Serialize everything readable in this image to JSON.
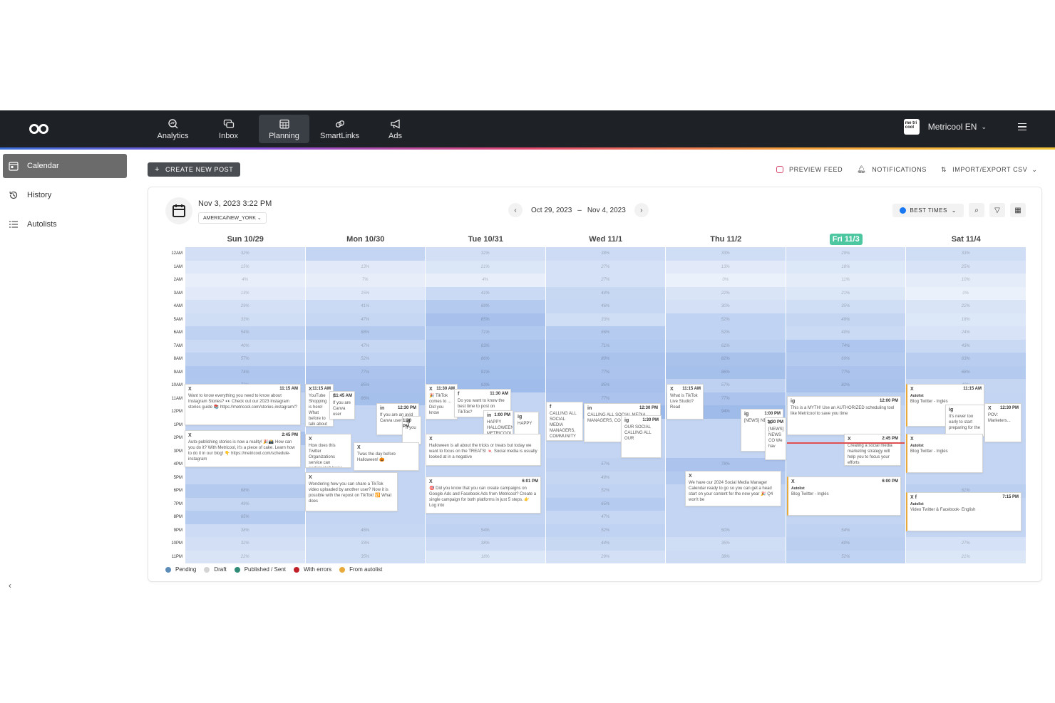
{
  "nav": {
    "items": [
      {
        "label": "Analytics",
        "icon": "analytics-icon"
      },
      {
        "label": "Inbox",
        "icon": "inbox-icon"
      },
      {
        "label": "Planning",
        "icon": "planning-icon",
        "active": true
      },
      {
        "label": "SmartLinks",
        "icon": "link-icon"
      },
      {
        "label": "Ads",
        "icon": "megaphone-icon"
      }
    ],
    "account_name": "Metricool EN",
    "badge_text": "me tri cool"
  },
  "sidebar": {
    "items": [
      {
        "label": "Calendar",
        "icon": "calendar-icon",
        "active": true
      },
      {
        "label": "History",
        "icon": "history-icon"
      },
      {
        "label": "Autolists",
        "icon": "list-icon"
      }
    ],
    "collapse_glyph": "‹"
  },
  "toolbar": {
    "create_label": "CREATE NEW POST",
    "preview_label": "PREVIEW FEED",
    "notifications_label": "NOTIFICATIONS",
    "import_label": "IMPORT/EXPORT CSV"
  },
  "calendar": {
    "current_datetime": "Nov 3, 2023 3:22 PM",
    "timezone": "AMERICA/NEW_YORK",
    "range_start": "Oct 29, 2023",
    "range_sep": "–",
    "range_end": "Nov 4, 2023",
    "best_times_label": "BEST TIMES",
    "days": [
      "Sun 10/29",
      "Mon 10/30",
      "Tue 10/31",
      "Wed 11/1",
      "Thu 11/2",
      "Fri 11/3",
      "Sat 11/4"
    ],
    "today_index": 5,
    "hours": [
      "12AM",
      "1AM",
      "2AM",
      "3AM",
      "4AM",
      "5AM",
      "6AM",
      "7AM",
      "8AM",
      "9AM",
      "10AM",
      "11AM",
      "12PM",
      "1PM",
      "2PM",
      "3PM",
      "4PM",
      "5PM",
      "6PM",
      "7PM",
      "8PM",
      "9PM",
      "10PM",
      "11PM"
    ],
    "heatmap": [
      [
        "32%",
        "15%",
        "4%",
        "13%",
        "29%",
        "33%",
        "54%",
        "40%",
        "57%",
        "74%",
        "72%",
        "",
        "",
        "",
        "83%",
        "",
        "",
        "",
        "68%",
        "49%",
        "65%",
        "38%",
        "32%",
        "22%"
      ],
      [
        "",
        "13%",
        "7%",
        "15%",
        "41%",
        "47%",
        "68%",
        "47%",
        "52%",
        "77%",
        "85%",
        "86%",
        "",
        "",
        "",
        "",
        "",
        "",
        "",
        "",
        "",
        "46%",
        "33%",
        "35%"
      ],
      [
        "32%",
        "21%",
        "4%",
        "41%",
        "69%",
        "85%",
        "71%",
        "83%",
        "86%",
        "91%",
        "93%",
        "",
        "",
        "",
        "",
        "",
        "",
        "",
        "",
        "",
        "",
        "54%",
        "38%",
        "18%"
      ],
      [
        "38%",
        "27%",
        "27%",
        "44%",
        "46%",
        "33%",
        "66%",
        "71%",
        "80%",
        "77%",
        "85%",
        "77%",
        "100%",
        "",
        "",
        "",
        "57%",
        "49%",
        "52%",
        "65%",
        "47%",
        "52%",
        "44%",
        "29%"
      ],
      [
        "33%",
        "13%",
        "0%",
        "22%",
        "30%",
        "52%",
        "52%",
        "61%",
        "82%",
        "86%",
        "57%",
        "77%",
        "94%",
        "",
        "",
        "",
        "78%",
        "68%",
        "",
        "",
        "",
        "50%",
        "35%",
        "38%"
      ],
      [
        "29%",
        "18%",
        "11%",
        "21%",
        "35%",
        "49%",
        "40%",
        "74%",
        "69%",
        "77%",
        "82%",
        "60%",
        "",
        "",
        "",
        "",
        "",
        "",
        "",
        "",
        "",
        "54%",
        "60%",
        "52%"
      ],
      [
        "33%",
        "25%",
        "10%",
        "0%",
        "22%",
        "18%",
        "24%",
        "43%",
        "63%",
        "68%",
        "49%",
        "",
        "",
        "",
        "",
        "",
        "",
        "",
        "61%",
        "",
        "",
        "",
        "27%",
        "21%"
      ]
    ],
    "now_label": "3PM"
  },
  "posts": [
    {
      "day": 0,
      "time": "11:15 AM",
      "net": "X",
      "text": "Want to know everything you need to know about Instagram Stories? 👀 Check out our 2023 Instagram stories guide 📚 https://metricool.com/stories-instagram/?"
    },
    {
      "day": 0,
      "time": "2:45 PM",
      "net": "X",
      "text": "Auto-publishing stories is now a reality! 🎉📸 How can you do it? With Metricool, it's a piece of cake. Learn how to do it in our blog! 👇 https://metricool.com/schedule-instagram"
    },
    {
      "day": 1,
      "time": "11:15 AM",
      "net": "X",
      "text": "YouTube Shopping is here! What before to talk about \"social commerce\" feature"
    },
    {
      "day": 1,
      "time": "11:45 AM",
      "net": "f",
      "text": "If you are Canva user"
    },
    {
      "day": 1,
      "time": "12:30 PM",
      "net": "in",
      "text": "If you are an avid Canva user"
    },
    {
      "day": 1,
      "time": "1:30 PM",
      "net": "ig",
      "text": "If you"
    },
    {
      "day": 1,
      "time": "",
      "net": "X",
      "text": "How does this Twitter Organizations service can participate? broke down everything"
    },
    {
      "day": 1,
      "time": "",
      "net": "X",
      "text": "Twas the day before Halloween! 🎃"
    },
    {
      "day": 1,
      "time": "",
      "net": "X",
      "text": "Wondering how you can share a TikTok video uploaded by another user? Now it is possible with the repost on TikTok! 🔁 What does"
    },
    {
      "day": 2,
      "time": "11:30 AM",
      "net": "X",
      "text": "🎉 TikTok comes to ... Did you know"
    },
    {
      "day": 2,
      "time": "11:30 AM",
      "net": "f",
      "text": "Do you want to know the best time to post on TikTok?"
    },
    {
      "day": 2,
      "time": "1:00 PM",
      "net": "in",
      "text": "HAPPY HALLOWEEN METRICOOL"
    },
    {
      "day": 2,
      "time": "",
      "net": "ig",
      "text": "HAPPY"
    },
    {
      "day": 2,
      "time": "",
      "net": "X",
      "text": "Halloween is all about the tricks or treats but today we want to focus on the TREATS! 🍬 Social media is usually looked at in a negative"
    },
    {
      "day": 2,
      "time": "6:01 PM",
      "net": "X",
      "text": "🎯 Did you know that you can create campaigns on Google Ads and Facebook Ads from Metricool? Create a single campaign for both platforms in just 5 steps. 👉 Log into"
    },
    {
      "day": 3,
      "time": "",
      "net": "f",
      "text": "CALLING ALL SOCIAL MEDIA MANAGERS, COMMUNITY"
    },
    {
      "day": 3,
      "time": "12:30 PM",
      "net": "in",
      "text": "CALLING ALL SOCIAL MEDIA MANAGERS, COMMUNITY"
    },
    {
      "day": 3,
      "time": "1:30 PM",
      "net": "ig",
      "text": "OUR SOCIAL CALLING ALL OUR"
    },
    {
      "day": 4,
      "time": "11:15 AM",
      "net": "X",
      "text": "What is TikTok Live Studio? Read"
    },
    {
      "day": 4,
      "time": "1:00 PM",
      "net": "ig",
      "text": "[NEWS] NEWS"
    },
    {
      "day": 4,
      "time": "1:30 PM",
      "net": "X",
      "text": "[NEWS] NEWS CO We hav"
    },
    {
      "day": 4,
      "time": "",
      "net": "X",
      "text": "We have our 2024 Social Media Manager Calendar ready to go so you can get a head start on your content for the new year 🎉 Q4 won't be"
    },
    {
      "day": 5,
      "time": "12:00 PM",
      "net": "ig",
      "text": "This is a MYTH! Use an AUTHORIZED scheduling tool like Metricool to save you time"
    },
    {
      "day": 5,
      "time": "2:45 PM",
      "net": "X",
      "text": "Creating a social media marketing strategy will help you to focus your efforts"
    },
    {
      "day": 5,
      "time": "6:00 PM",
      "net": "X",
      "autolist": "Autolist",
      "text": "Blog Twitter - Inglés"
    },
    {
      "day": 6,
      "time": "11:15 AM",
      "net": "X",
      "autolist": "Autolist",
      "text": "Blog Twitter - Inglés"
    },
    {
      "day": 6,
      "time": "",
      "net": "ig",
      "text": "It's never too early to start preparing for the"
    },
    {
      "day": 6,
      "time": "12:30 PM",
      "net": "X",
      "text": "POV: Marketers..."
    },
    {
      "day": 6,
      "time": "",
      "net": "X",
      "autolist": "Autolist",
      "text": "Blog Twitter - Inglés"
    },
    {
      "day": 6,
      "time": "7:15 PM",
      "net": "X f",
      "autolist": "Autolist",
      "text": "Video Twitter & Facebook- English"
    }
  ],
  "legend": [
    {
      "label": "Pending",
      "color": "#5b8db8"
    },
    {
      "label": "Draft",
      "color": "#d4d4d4"
    },
    {
      "label": "Published / Sent",
      "color": "#2f8a78"
    },
    {
      "label": "With errors",
      "color": "#c0202a"
    },
    {
      "label": "From autolist",
      "color": "#e8a93a"
    }
  ]
}
